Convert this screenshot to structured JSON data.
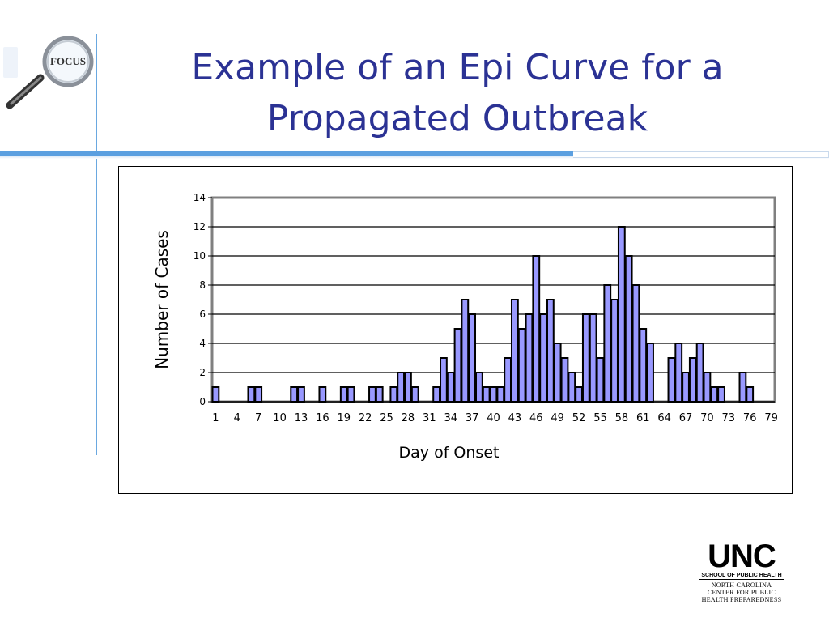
{
  "slide": {
    "title_line1": "Example of an Epi Curve for a",
    "title_line2": "Propagated Outbreak",
    "title_color": "#2b3294",
    "accent_color": "#5b9fe0"
  },
  "focus_logo": {
    "text": "FOCUS",
    "icon": "magnifying-glass-icon"
  },
  "unc_logo": {
    "word": "UNC",
    "subtitle": "SCHOOL OF PUBLIC HEALTH",
    "center_lines": [
      "NORTH CAROLINA",
      "CENTER FOR PUBLIC",
      "HEALTH PREPAREDNESS"
    ]
  },
  "chart_data": {
    "type": "bar",
    "title": "",
    "xlabel": "Day of Onset",
    "ylabel": "Number of Cases",
    "ylim": [
      0,
      14
    ],
    "yticks": [
      0,
      2,
      4,
      6,
      8,
      10,
      12,
      14
    ],
    "grid": true,
    "bar_color": "#9999ff",
    "x": [
      1,
      2,
      3,
      4,
      5,
      6,
      7,
      8,
      9,
      10,
      11,
      12,
      13,
      14,
      15,
      16,
      17,
      18,
      19,
      20,
      21,
      22,
      23,
      24,
      25,
      26,
      27,
      28,
      29,
      30,
      31,
      32,
      33,
      34,
      35,
      36,
      37,
      38,
      39,
      40,
      41,
      42,
      43,
      44,
      45,
      46,
      47,
      48,
      49,
      50,
      51,
      52,
      53,
      54,
      55,
      56,
      57,
      58,
      59,
      60,
      61,
      62,
      63,
      64,
      65,
      66,
      67,
      68,
      69,
      70,
      71,
      72,
      73,
      74,
      75,
      76,
      77,
      78,
      79
    ],
    "values": [
      1,
      0,
      0,
      0,
      0,
      1,
      1,
      0,
      0,
      0,
      0,
      1,
      1,
      0,
      0,
      1,
      0,
      0,
      1,
      1,
      0,
      0,
      1,
      1,
      0,
      1,
      2,
      2,
      1,
      0,
      0,
      1,
      3,
      2,
      5,
      7,
      6,
      2,
      1,
      1,
      1,
      3,
      7,
      5,
      6,
      10,
      6,
      7,
      4,
      3,
      2,
      1,
      6,
      6,
      3,
      8,
      7,
      12,
      10,
      8,
      5,
      4,
      0,
      0,
      3,
      4,
      2,
      3,
      4,
      2,
      1,
      1,
      0,
      0,
      2,
      1,
      0,
      0,
      0
    ],
    "xtick_labels": [
      "1",
      "4",
      "7",
      "10",
      "13",
      "16",
      "19",
      "22",
      "25",
      "28",
      "31",
      "34",
      "37",
      "40",
      "43",
      "46",
      "49",
      "52",
      "55",
      "58",
      "61",
      "64",
      "67",
      "70",
      "73",
      "76",
      "79"
    ]
  }
}
